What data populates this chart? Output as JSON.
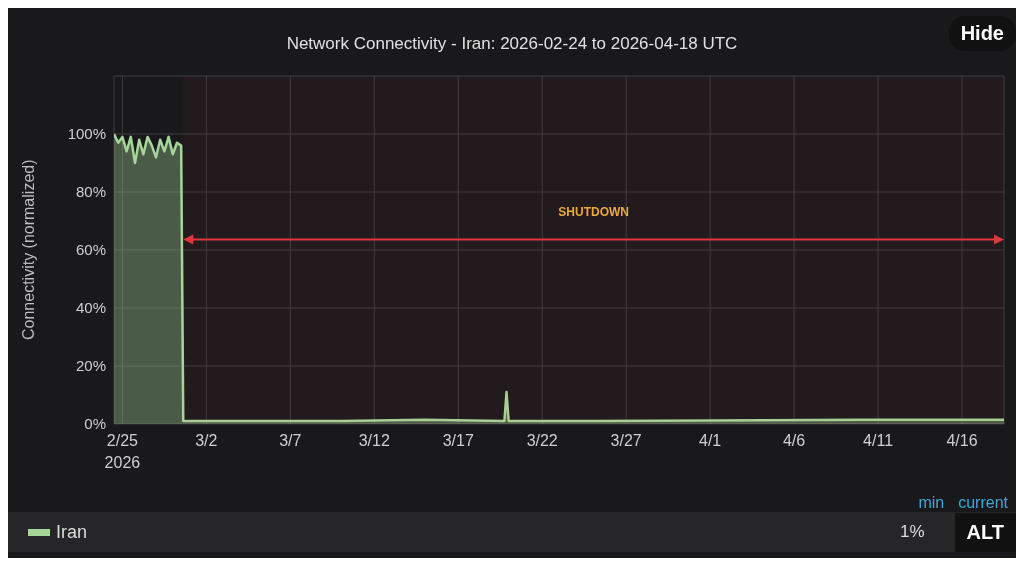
{
  "chart_data": {
    "type": "area",
    "title": "Network Connectivity - Iran: 2026-02-24 to 2026-04-18 UTC",
    "ylabel": "Connectivity (normalized)",
    "x": [
      "2026-02-24T12:00",
      "2026-02-24T18:00",
      "2026-02-25T00:00",
      "2026-02-25T06:00",
      "2026-02-25T12:00",
      "2026-02-25T18:00",
      "2026-02-26T00:00",
      "2026-02-26T06:00",
      "2026-02-26T12:00",
      "2026-02-26T18:00",
      "2026-02-27T00:00",
      "2026-02-27T06:00",
      "2026-02-27T12:00",
      "2026-02-27T18:00",
      "2026-02-28T00:00",
      "2026-02-28T06:00",
      "2026-02-28T12:00",
      "2026-02-28T15:00",
      "2026-03-01",
      "2026-03-05",
      "2026-03-10",
      "2026-03-15",
      "2026-03-19T18:00",
      "2026-03-19T21:00",
      "2026-03-20T00:00",
      "2026-03-25",
      "2026-04-01",
      "2026-04-10",
      "2026-04-18T12:00"
    ],
    "series": [
      {
        "name": "Iran",
        "color": "#a6d69a",
        "values": [
          100,
          97,
          99,
          94,
          99,
          90,
          98,
          93,
          99,
          96,
          92,
          98,
          94,
          99,
          93,
          97,
          96,
          1,
          1,
          1,
          1,
          1.5,
          1,
          11,
          1,
          1,
          1.2,
          1.5,
          1.5
        ]
      }
    ],
    "xlim": [
      "2026-02-24T12:00",
      "2026-04-18T12:00"
    ],
    "xticks": [
      {
        "value": "2026-02-25",
        "label": "2/25 2026"
      },
      {
        "value": "2026-03-02",
        "label": "3/2"
      },
      {
        "value": "2026-03-07",
        "label": "3/7"
      },
      {
        "value": "2026-03-12",
        "label": "3/12"
      },
      {
        "value": "2026-03-17",
        "label": "3/17"
      },
      {
        "value": "2026-03-22",
        "label": "3/22"
      },
      {
        "value": "2026-03-27",
        "label": "3/27"
      },
      {
        "value": "2026-04-01",
        "label": "4/1"
      },
      {
        "value": "2026-04-06",
        "label": "4/6"
      },
      {
        "value": "2026-04-11",
        "label": "4/11"
      },
      {
        "value": "2026-04-16",
        "label": "4/16"
      }
    ],
    "ylim": [
      0,
      120
    ],
    "yticks": [
      {
        "value": 0,
        "label": "0%"
      },
      {
        "value": 20,
        "label": "20%"
      },
      {
        "value": 40,
        "label": "40%"
      },
      {
        "value": 60,
        "label": "60%"
      },
      {
        "value": 80,
        "label": "80%"
      },
      {
        "value": 100,
        "label": "100%"
      }
    ],
    "bands": [
      {
        "axis": "x",
        "from": "2026-02-28T15:00",
        "to": "2026-04-18T12:00",
        "label": "SHUTDOWN",
        "color": "#e0363c"
      }
    ],
    "grid": true,
    "legend": "bottom",
    "annotations": [
      "Hide",
      "min",
      "current",
      "1%",
      "ALT"
    ]
  }
}
